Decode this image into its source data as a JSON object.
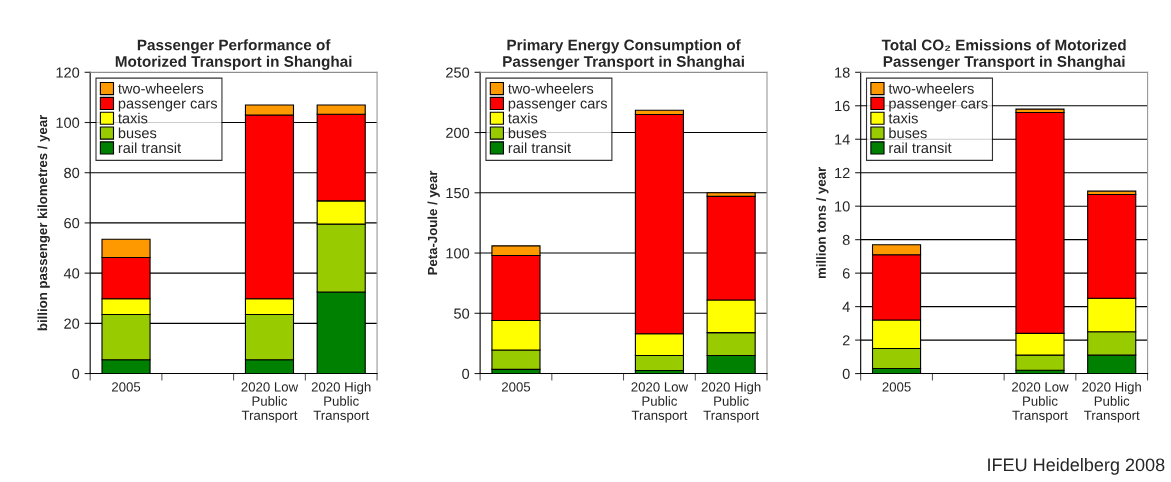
{
  "chart_data": [
    {
      "type": "bar",
      "stacked": true,
      "title": "Passenger Performance of\nMotorized Transport in Shanghai",
      "ylabel": "billion passenger kilometres / year",
      "categories": [
        "2005",
        null,
        "2020 Low\nPublic\nTransport",
        "2020 High\nPublic\nTransport"
      ],
      "ylim": [
        0,
        120
      ],
      "yticks": [
        0,
        20,
        40,
        60,
        80,
        100,
        120
      ],
      "grid": "y",
      "legend": "top left",
      "series": [
        {
          "name": "rail transit",
          "color": "#008000",
          "values": [
            5.5,
            null,
            5.5,
            32.5
          ]
        },
        {
          "name": "buses",
          "color": "#99cc00",
          "values": [
            18,
            null,
            18,
            27
          ]
        },
        {
          "name": "taxis",
          "color": "#ffff00",
          "values": [
            6.3,
            null,
            6.3,
            9.3
          ]
        },
        {
          "name": "passenger cars",
          "color": "#ff0000",
          "values": [
            16.4,
            null,
            73.2,
            34.5
          ]
        },
        {
          "name": "two-wheelers",
          "color": "#ff9900",
          "values": [
            7.3,
            null,
            4,
            3.7
          ]
        }
      ]
    },
    {
      "type": "bar",
      "stacked": true,
      "title": "Primary Energy Consumption of\nPassenger Transport in Shanghai",
      "ylabel": "Peta-Joule / year",
      "categories": [
        "2005",
        null,
        "2020 Low\nPublic\nTransport",
        "2020 High\nPublic\nTransport"
      ],
      "ylim": [
        0,
        250
      ],
      "yticks": [
        0,
        50,
        100,
        150,
        200,
        250
      ],
      "grid": "y",
      "legend": "top left",
      "series": [
        {
          "name": "rail transit",
          "color": "#008000",
          "values": [
            3.5,
            null,
            2.5,
            15
          ]
        },
        {
          "name": "buses",
          "color": "#99cc00",
          "values": [
            16,
            null,
            12.5,
            19
          ]
        },
        {
          "name": "taxis",
          "color": "#ffff00",
          "values": [
            24.5,
            null,
            18,
            27
          ]
        },
        {
          "name": "passenger cars",
          "color": "#ff0000",
          "values": [
            54,
            null,
            182,
            86
          ]
        },
        {
          "name": "two-wheelers",
          "color": "#ff9900",
          "values": [
            8,
            null,
            3.5,
            3
          ]
        }
      ]
    },
    {
      "type": "bar",
      "stacked": true,
      "title": "Total CO₂ Emissions of Motorized\nPassenger Transport in Shanghai",
      "ylabel": "million tons / year",
      "categories": [
        "2005",
        null,
        "2020 Low\nPublic\nTransport",
        "2020 High\nPublic\nTransport"
      ],
      "ylim": [
        0,
        18
      ],
      "yticks": [
        0,
        2,
        4,
        6,
        8,
        10,
        12,
        14,
        16,
        18
      ],
      "grid": "y",
      "legend": "top left",
      "annotations": [
        "IFEU Heidelberg 2008"
      ],
      "series": [
        {
          "name": "rail transit",
          "color": "#008000",
          "values": [
            0.3,
            null,
            0.2,
            1.1
          ]
        },
        {
          "name": "buses",
          "color": "#99cc00",
          "values": [
            1.2,
            null,
            0.9,
            1.4
          ]
        },
        {
          "name": "taxis",
          "color": "#ffff00",
          "values": [
            1.7,
            null,
            1.3,
            2.0
          ]
        },
        {
          "name": "passenger cars",
          "color": "#ff0000",
          "values": [
            3.9,
            null,
            13.2,
            6.2
          ]
        },
        {
          "name": "two-wheelers",
          "color": "#ff9900",
          "values": [
            0.6,
            null,
            0.2,
            0.2
          ]
        }
      ]
    }
  ]
}
